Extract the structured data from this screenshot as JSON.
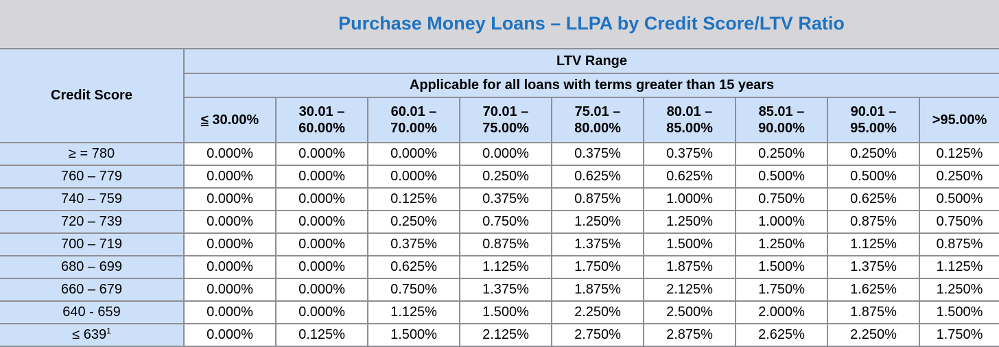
{
  "title": "Purchase Money Loans – LLPA by Credit Score/LTV Ratio",
  "header": {
    "credit_score_label": "Credit Score",
    "ltv_range_label": "LTV Range",
    "applicability_note": "Applicable for all loans with terms greater than 15 years",
    "columns": [
      {
        "line1": "≤",
        "line2": " 30.00%"
      },
      {
        "line1": "30.01 –",
        "line2": "60.00%"
      },
      {
        "line1": "60.01 –",
        "line2": "70.00%"
      },
      {
        "line1": "70.01 –",
        "line2": "75.00%"
      },
      {
        "line1": "75.01 –",
        "line2": "80.00%"
      },
      {
        "line1": "80.01 –",
        "line2": "85.00%"
      },
      {
        "line1": "85.01 –",
        "line2": "90.00%"
      },
      {
        "line1": "90.01 –",
        "line2": "95.00%"
      },
      {
        "line1": ">95.00%",
        "line2": ""
      }
    ]
  },
  "rows": [
    {
      "label": "≥ = 780",
      "sup": "",
      "values": [
        "0.000%",
        "0.000%",
        "0.000%",
        "0.000%",
        "0.375%",
        "0.375%",
        "0.250%",
        "0.250%",
        "0.125%"
      ]
    },
    {
      "label": "760 – 779",
      "sup": "",
      "values": [
        "0.000%",
        "0.000%",
        "0.000%",
        "0.250%",
        "0.625%",
        "0.625%",
        "0.500%",
        "0.500%",
        "0.250%"
      ]
    },
    {
      "label": "740 – 759",
      "sup": "",
      "values": [
        "0.000%",
        "0.000%",
        "0.125%",
        "0.375%",
        "0.875%",
        "1.000%",
        "0.750%",
        "0.625%",
        "0.500%"
      ]
    },
    {
      "label": "720 – 739",
      "sup": "",
      "values": [
        "0.000%",
        "0.000%",
        "0.250%",
        "0.750%",
        "1.250%",
        "1.250%",
        "1.000%",
        "0.875%",
        "0.750%"
      ]
    },
    {
      "label": "700 – 719",
      "sup": "",
      "values": [
        "0.000%",
        "0.000%",
        "0.375%",
        "0.875%",
        "1.375%",
        "1.500%",
        "1.250%",
        "1.125%",
        "0.875%"
      ]
    },
    {
      "label": "680 – 699",
      "sup": "",
      "values": [
        "0.000%",
        "0.000%",
        "0.625%",
        "1.125%",
        "1.750%",
        "1.875%",
        "1.500%",
        "1.375%",
        "1.125%"
      ]
    },
    {
      "label": "660 – 679",
      "sup": "",
      "values": [
        "0.000%",
        "0.000%",
        "0.750%",
        "1.375%",
        "1.875%",
        "2.125%",
        "1.750%",
        "1.625%",
        "1.250%"
      ]
    },
    {
      "label": "640 - 659",
      "sup": "",
      "values": [
        "0.000%",
        "0.000%",
        "1.125%",
        "1.500%",
        "2.250%",
        "2.500%",
        "2.000%",
        "1.875%",
        "1.500%"
      ]
    },
    {
      "label": "≤ 639",
      "sup": "1",
      "values": [
        "0.000%",
        "0.125%",
        "1.500%",
        "2.125%",
        "2.750%",
        "2.875%",
        "2.625%",
        "2.250%",
        "1.750%"
      ]
    }
  ],
  "colors": {
    "title": "#1f73c2",
    "title_bar_bg": "#d6d6d9",
    "header_bg": "#cde0fa",
    "grid": "#8e8e93"
  }
}
